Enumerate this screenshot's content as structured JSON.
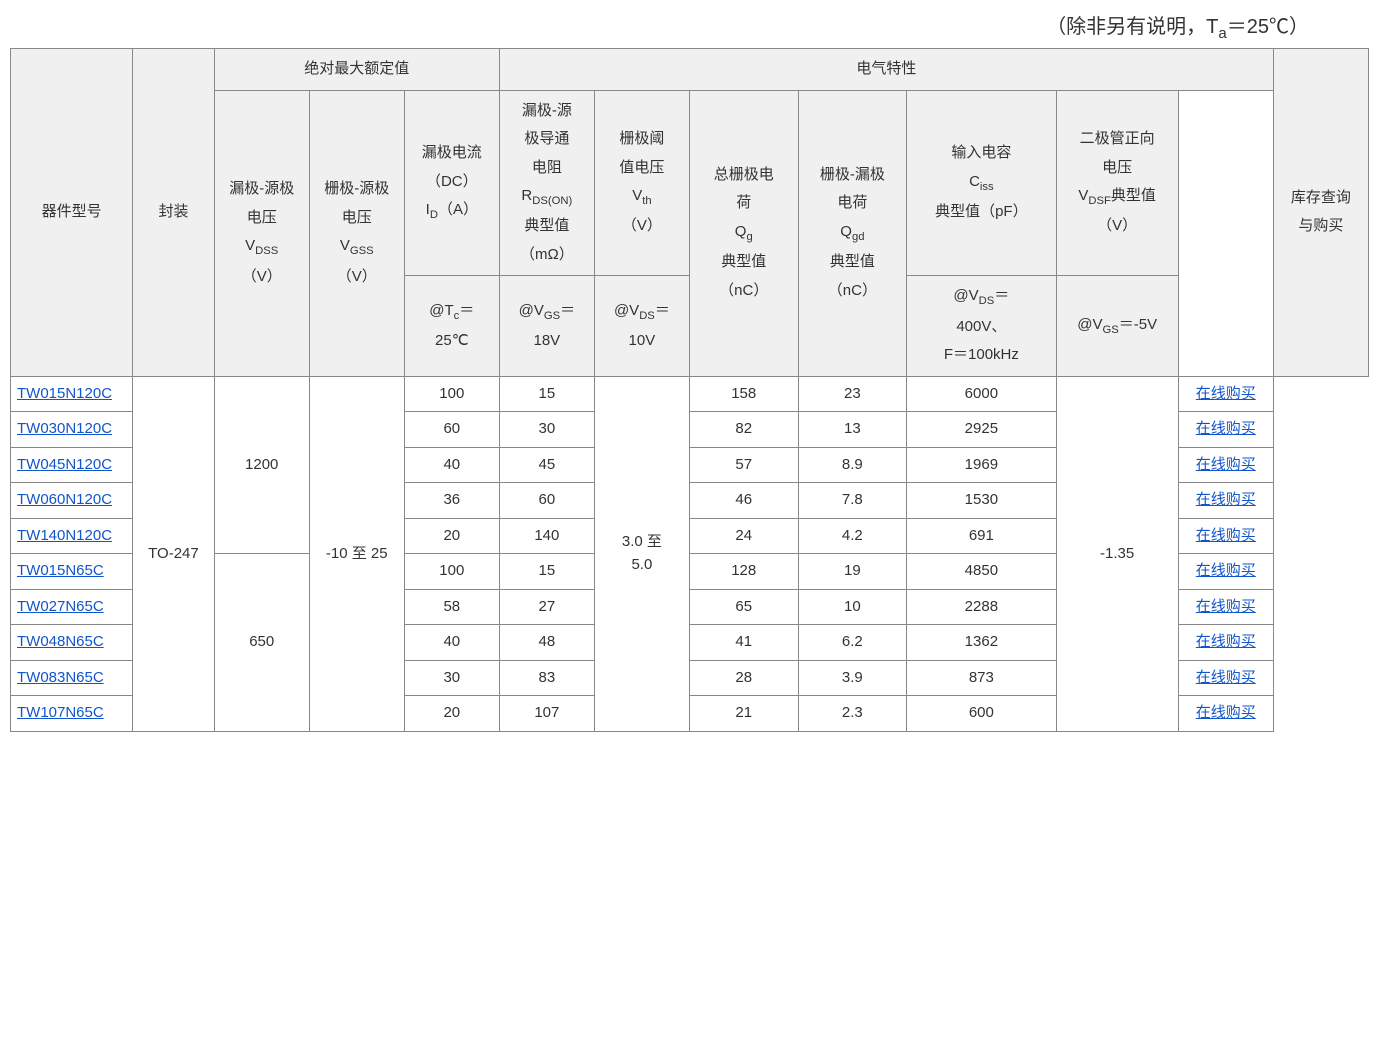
{
  "caption_prefix": "（除非另有说明，T",
  "caption_sub": "a",
  "caption_suffix": "＝25℃）",
  "headers": {
    "group_abs": "绝对最大额定值",
    "group_elec": "电气特性",
    "model": "器件型号",
    "pkg": "封装",
    "vdss_l1": "漏极-源极",
    "vdss_l2": "电压",
    "vdss_l3": "V",
    "vdss_sub": "DSS",
    "vdss_l4": "（V）",
    "vgss_l1": "栅极-源极",
    "vgss_l2": "电压",
    "vgss_l3": "V",
    "vgss_sub": "GSS",
    "vgss_l4": "（V）",
    "id_l1": "漏极电流",
    "id_l2": "（DC）",
    "id_l3a": "I",
    "id_sub": "D",
    "id_l3b": "（A）",
    "id_cond_a": "@T",
    "id_cond_sub": "c",
    "id_cond_b": "＝",
    "id_cond_c": "25℃",
    "rds_l1": "漏极-源",
    "rds_l2": "极导通",
    "rds_l3": "电阻",
    "rds_l4a": "R",
    "rds_l4sub": "DS(ON)",
    "rds_l5": "典型值",
    "rds_l6": "（mΩ）",
    "rds_cond_a": "@V",
    "rds_cond_sub": "GS",
    "rds_cond_b": "＝",
    "rds_cond_c": "18V",
    "vth_l1": "栅极阈",
    "vth_l2": "值电压",
    "vth_l3a": "V",
    "vth_l3sub": "th",
    "vth_l4": "（V）",
    "vth_cond_a": "@V",
    "vth_cond_sub": "DS",
    "vth_cond_b": "＝",
    "vth_cond_c": "10V",
    "qg_l1": "总栅极电",
    "qg_l2": "荷",
    "qg_l3a": "Q",
    "qg_l3sub": "g",
    "qg_l4": "典型值",
    "qg_l5": "（nC）",
    "qgd_l1": "栅极-漏极",
    "qgd_l2": "电荷",
    "qgd_l3a": "Q",
    "qgd_l3sub": "gd",
    "qgd_l4": "典型值",
    "qgd_l5": "（nC）",
    "ciss_l1": "输入电容",
    "ciss_l2a": "C",
    "ciss_l2sub": "iss",
    "ciss_l3": "典型值（pF）",
    "ciss_cond_a": "@V",
    "ciss_cond_sub": "DS",
    "ciss_cond_b": "＝",
    "ciss_cond_c": "400V、",
    "ciss_cond_d": "F＝100kHz",
    "vdsf_l1": "二极管正向",
    "vdsf_l2": "电压",
    "vdsf_l3a": "V",
    "vdsf_l3sub": "DSF",
    "vdsf_l3b": "典型值",
    "vdsf_l4": "（V）",
    "vdsf_cond_a": "@V",
    "vdsf_cond_sub": "GS",
    "vdsf_cond_b": "＝-5V",
    "buy_l1": "库存查询",
    "buy_l2": "与购买"
  },
  "shared": {
    "pkg": "TO-247",
    "vgss": "-10 至 25",
    "vth_l1": "3.0 至",
    "vth_l2": "5.0",
    "vdsf": "-1.35",
    "vdss_1200": "1200",
    "vdss_650": "650",
    "buy_text": "在线购买"
  },
  "rows": [
    {
      "model": "TW015N120C",
      "id": "100",
      "rds": "15",
      "qg": "158",
      "qgd": "23",
      "ciss": "6000"
    },
    {
      "model": "TW030N120C",
      "id": "60",
      "rds": "30",
      "qg": "82",
      "qgd": "13",
      "ciss": "2925"
    },
    {
      "model": "TW045N120C",
      "id": "40",
      "rds": "45",
      "qg": "57",
      "qgd": "8.9",
      "ciss": "1969"
    },
    {
      "model": "TW060N120C",
      "id": "36",
      "rds": "60",
      "qg": "46",
      "qgd": "7.8",
      "ciss": "1530"
    },
    {
      "model": "TW140N120C",
      "id": "20",
      "rds": "140",
      "qg": "24",
      "qgd": "4.2",
      "ciss": "691"
    },
    {
      "model": "TW015N65C",
      "id": "100",
      "rds": "15",
      "qg": "128",
      "qgd": "19",
      "ciss": "4850"
    },
    {
      "model": "TW027N65C",
      "id": "58",
      "rds": "27",
      "qg": "65",
      "qgd": "10",
      "ciss": "2288"
    },
    {
      "model": "TW048N65C",
      "id": "40",
      "rds": "48",
      "qg": "41",
      "qgd": "6.2",
      "ciss": "1362"
    },
    {
      "model": "TW083N65C",
      "id": "30",
      "rds": "83",
      "qg": "28",
      "qgd": "3.9",
      "ciss": "873"
    },
    {
      "model": "TW107N65C",
      "id": "20",
      "rds": "107",
      "qg": "21",
      "qgd": "2.3",
      "ciss": "600"
    }
  ],
  "colors": {
    "header_bg": "#f0f0f0",
    "body_bg": "#ffffff",
    "border": "#888888",
    "link": "#1155cc",
    "text": "#333333"
  }
}
